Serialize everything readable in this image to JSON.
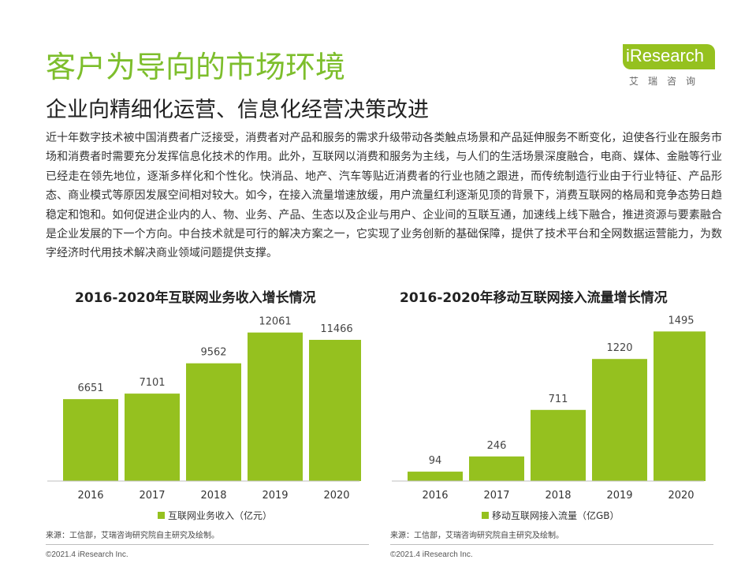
{
  "page": {
    "title": "客户为导向的市场环境",
    "subtitle": "企业向精细化运营、信息化经营决策改进",
    "paragraph": "近十年数字技术被中国消费者广泛接受，消费者对产品和服务的需求升级带动各类触点场景和产品延伸服务不断变化，迫使各行业在服务市场和消费者时需要充分发挥信息化技术的作用。此外，互联网以消费和服务为主线，与人们的生活场景深度融合，电商、媒体、金融等行业已经走在领先地位，逐渐多样化和个性化。快消品、地产、汽车等贴近消费者的行业也随之跟进，而传统制造行业由于行业特征、产品形态、商业模式等原因发展空间相对较大。如今，在接入流量增速放缓，用户流量红利逐渐见顶的背景下，消费互联网的格局和竞争态势日趋稳定和饱和。如何促进企业内的人、物、业务、产品、生态以及企业与用户、企业间的互联互通，加速线上线下融合，推进资源与要素融合是企业发展的下一个方向。中台技术就是可行的解决方案之一，它实现了业务创新的基础保障，提供了技术平台和全网数据运营能力，为数字经济时代用技术解决商业领域问题提供支撑。"
  },
  "logo": {
    "text": "iResearch",
    "cn": "艾瑞咨询",
    "color": "#95c11f"
  },
  "colors": {
    "accent": "#95c11f",
    "title": "#7dbe2c"
  },
  "chart_data": [
    {
      "type": "bar",
      "title": "2016-2020年互联网业务收入增长情况",
      "categories": [
        "2016",
        "2017",
        "2018",
        "2019",
        "2020"
      ],
      "series": [
        {
          "name": "互联网业务收入（亿元）",
          "values": [
            6651,
            7101,
            9562,
            12061,
            11466
          ]
        }
      ],
      "ylim": [
        0,
        13000
      ],
      "grid": false,
      "legend": "bottom",
      "source": "来源：工信部，艾瑞咨询研究院自主研究及绘制。",
      "copyright": "©2021.4 iResearch Inc."
    },
    {
      "type": "bar",
      "title": "2016-2020年移动互联网接入流量增长情况",
      "categories": [
        "2016",
        "2017",
        "2018",
        "2019",
        "2020"
      ],
      "series": [
        {
          "name": "移动互联网接入流量（亿GB）",
          "values": [
            94,
            246,
            711,
            1220,
            1495
          ]
        }
      ],
      "ylim": [
        0,
        1600
      ],
      "grid": false,
      "legend": "bottom",
      "source": "来源：工信部，艾瑞咨询研究院自主研究及绘制。",
      "copyright": "©2021.4 iResearch Inc."
    }
  ]
}
